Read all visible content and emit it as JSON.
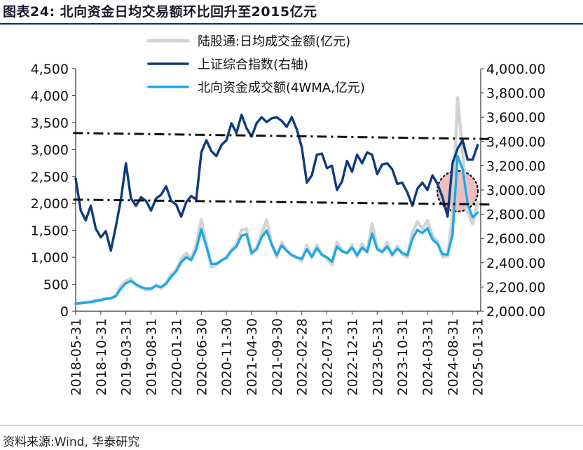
{
  "figure_title": "图表24:  北向资金日均交易额环比回升至2015亿元",
  "source": "资料来源:Wind, 华泰研究",
  "colors": {
    "daily_turnover": "#d3d3d3",
    "index": "#0d3b7e",
    "northbound_4wma": "#1ba8e8",
    "trend_line": "#111111",
    "highlight_fill": "#e8a7a7",
    "title_rule": "#0b2e6b"
  },
  "chart_data": {
    "type": "line",
    "title": "北向资金日均交易额环比回升至2015亿元",
    "x_tick_labels": [
      "2018-05-31",
      "2018-10-31",
      "2019-03-31",
      "2019-08-31",
      "2020-01-31",
      "2020-06-30",
      "2020-11-30",
      "2021-04-30",
      "2021-09-30",
      "2022-02-28",
      "2022-07-31",
      "2022-12-31",
      "2023-05-31",
      "2023-10-31",
      "2024-03-31",
      "2024-08-31",
      "2025-01-31"
    ],
    "x_tick_times": [
      0,
      5,
      10,
      15,
      20,
      25,
      30,
      35,
      40,
      45,
      50,
      55,
      60,
      65,
      70,
      75,
      80
    ],
    "x_range": [
      0,
      80.6
    ],
    "left_axis": {
      "min": 0,
      "max": 4500,
      "ticks": [
        0,
        500,
        1000,
        1500,
        2000,
        2500,
        3000,
        3500,
        4000,
        4500
      ],
      "tick_labels": [
        "0",
        "500",
        "1,000",
        "1,500",
        "2,000",
        "2,500",
        "3,000",
        "3,500",
        "4,000",
        "4,500"
      ]
    },
    "right_axis": {
      "min": 2000,
      "max": 4000,
      "ticks": [
        2000,
        2200,
        2400,
        2600,
        2800,
        3000,
        3200,
        3400,
        3600,
        3800,
        4000
      ],
      "tick_labels": [
        "2,000.00",
        "2,200.00",
        "2,400.00",
        "2,600.00",
        "2,800.00",
        "3,000.00",
        "3,200.00",
        "3,400.00",
        "3,600.00",
        "3,800.00",
        "4,000.00"
      ]
    },
    "series": [
      {
        "name": "陆股通:日均成交金额(亿元)",
        "axis": "left",
        "points": [
          [
            0,
            130
          ],
          [
            1,
            150
          ],
          [
            2,
            160
          ],
          [
            3,
            175
          ],
          [
            4,
            205
          ],
          [
            5,
            210
          ],
          [
            6,
            245
          ],
          [
            7,
            230
          ],
          [
            8,
            300
          ],
          [
            9,
            470
          ],
          [
            10,
            560
          ],
          [
            11,
            610
          ],
          [
            12,
            480
          ],
          [
            13,
            430
          ],
          [
            14,
            390
          ],
          [
            15,
            410
          ],
          [
            16,
            490
          ],
          [
            17,
            420
          ],
          [
            18,
            530
          ],
          [
            19,
            680
          ],
          [
            20,
            770
          ],
          [
            21,
            960
          ],
          [
            22,
            1080
          ],
          [
            23,
            960
          ],
          [
            24,
            1250
          ],
          [
            25,
            1700
          ],
          [
            26,
            1250
          ],
          [
            27,
            820
          ],
          [
            28,
            860
          ],
          [
            29,
            940
          ],
          [
            30,
            1000
          ],
          [
            31,
            1150
          ],
          [
            32,
            1250
          ],
          [
            33,
            1500
          ],
          [
            34,
            1530
          ],
          [
            35,
            1060
          ],
          [
            36,
            1180
          ],
          [
            37,
            1420
          ],
          [
            38,
            1700
          ],
          [
            39,
            1250
          ],
          [
            40,
            1000
          ],
          [
            41,
            1280
          ],
          [
            42,
            1130
          ],
          [
            43,
            1040
          ],
          [
            44,
            990
          ],
          [
            45,
            930
          ],
          [
            46,
            1220
          ],
          [
            47,
            990
          ],
          [
            48,
            1230
          ],
          [
            49,
            1040
          ],
          [
            50,
            980
          ],
          [
            51,
            860
          ],
          [
            52,
            1280
          ],
          [
            53,
            1140
          ],
          [
            54,
            1070
          ],
          [
            55,
            1230
          ],
          [
            56,
            1010
          ],
          [
            57,
            1250
          ],
          [
            58,
            1100
          ],
          [
            59,
            1620
          ],
          [
            60,
            1170
          ],
          [
            61,
            1090
          ],
          [
            62,
            1280
          ],
          [
            63,
            1030
          ],
          [
            64,
            1210
          ],
          [
            65,
            1060
          ],
          [
            66,
            1000
          ],
          [
            67,
            1460
          ],
          [
            68,
            1660
          ],
          [
            69,
            1530
          ],
          [
            70,
            1680
          ],
          [
            71,
            1400
          ],
          [
            72,
            1290
          ],
          [
            73,
            1010
          ],
          [
            74,
            1020
          ],
          [
            75,
            1750
          ],
          [
            76,
            3960
          ],
          [
            77,
            2970
          ],
          [
            78,
            1840
          ],
          [
            79,
            1620
          ],
          [
            80,
            2015
          ]
        ]
      },
      {
        "name": "上证综合指数(右轴)",
        "axis": "right",
        "points": [
          [
            0,
            3095
          ],
          [
            1,
            2830
          ],
          [
            2,
            2750
          ],
          [
            3,
            2870
          ],
          [
            4,
            2680
          ],
          [
            5,
            2610
          ],
          [
            6,
            2660
          ],
          [
            7,
            2500
          ],
          [
            8,
            2700
          ],
          [
            9,
            2920
          ],
          [
            10,
            3220
          ],
          [
            11,
            2930
          ],
          [
            12,
            2870
          ],
          [
            13,
            2940
          ],
          [
            14,
            2910
          ],
          [
            15,
            2830
          ],
          [
            16,
            2930
          ],
          [
            17,
            2960
          ],
          [
            18,
            3030
          ],
          [
            19,
            2910
          ],
          [
            20,
            2880
          ],
          [
            21,
            2780
          ],
          [
            22,
            2900
          ],
          [
            23,
            2950
          ],
          [
            24,
            2920
          ],
          [
            25,
            3310
          ],
          [
            26,
            3410
          ],
          [
            27,
            3320
          ],
          [
            28,
            3280
          ],
          [
            29,
            3370
          ],
          [
            30,
            3410
          ],
          [
            31,
            3550
          ],
          [
            32,
            3470
          ],
          [
            33,
            3620
          ],
          [
            34,
            3510
          ],
          [
            35,
            3440
          ],
          [
            36,
            3550
          ],
          [
            37,
            3600
          ],
          [
            38,
            3560
          ],
          [
            39,
            3590
          ],
          [
            40,
            3600
          ],
          [
            41,
            3570
          ],
          [
            42,
            3520
          ],
          [
            43,
            3600
          ],
          [
            44,
            3500
          ],
          [
            45,
            3350
          ],
          [
            46,
            3060
          ],
          [
            47,
            3120
          ],
          [
            48,
            3290
          ],
          [
            49,
            3300
          ],
          [
            50,
            3180
          ],
          [
            51,
            3200
          ],
          [
            52,
            3000
          ],
          [
            53,
            3070
          ],
          [
            54,
            3240
          ],
          [
            55,
            3150
          ],
          [
            56,
            3290
          ],
          [
            57,
            3220
          ],
          [
            58,
            3310
          ],
          [
            59,
            3290
          ],
          [
            60,
            3130
          ],
          [
            61,
            3210
          ],
          [
            62,
            3220
          ],
          [
            63,
            3170
          ],
          [
            64,
            3050
          ],
          [
            65,
            3060
          ],
          [
            66,
            2980
          ],
          [
            67,
            2870
          ],
          [
            68,
            3010
          ],
          [
            69,
            3060
          ],
          [
            70,
            3000
          ],
          [
            71,
            3120
          ],
          [
            72,
            3050
          ],
          [
            73,
            2940
          ],
          [
            74,
            2780
          ],
          [
            75,
            3220
          ],
          [
            76,
            3340
          ],
          [
            77,
            3410
          ],
          [
            78,
            3250
          ],
          [
            79,
            3250
          ],
          [
            80,
            3370
          ]
        ]
      },
      {
        "name": "北向资金成交额(4WMA,亿元)",
        "axis": "left",
        "points": [
          [
            0,
            140
          ],
          [
            1,
            150
          ],
          [
            2,
            160
          ],
          [
            3,
            170
          ],
          [
            4,
            190
          ],
          [
            5,
            205
          ],
          [
            6,
            230
          ],
          [
            7,
            240
          ],
          [
            8,
            280
          ],
          [
            9,
            420
          ],
          [
            10,
            520
          ],
          [
            11,
            560
          ],
          [
            12,
            500
          ],
          [
            13,
            450
          ],
          [
            14,
            420
          ],
          [
            15,
            420
          ],
          [
            16,
            470
          ],
          [
            17,
            450
          ],
          [
            18,
            510
          ],
          [
            19,
            640
          ],
          [
            20,
            740
          ],
          [
            21,
            910
          ],
          [
            22,
            1000
          ],
          [
            23,
            950
          ],
          [
            24,
            1150
          ],
          [
            25,
            1520
          ],
          [
            26,
            1200
          ],
          [
            27,
            880
          ],
          [
            28,
            880
          ],
          [
            29,
            940
          ],
          [
            30,
            990
          ],
          [
            31,
            1120
          ],
          [
            32,
            1200
          ],
          [
            33,
            1400
          ],
          [
            34,
            1430
          ],
          [
            35,
            1080
          ],
          [
            36,
            1150
          ],
          [
            37,
            1370
          ],
          [
            38,
            1500
          ],
          [
            39,
            1240
          ],
          [
            40,
            1040
          ],
          [
            41,
            1220
          ],
          [
            42,
            1120
          ],
          [
            43,
            1040
          ],
          [
            44,
            1000
          ],
          [
            45,
            970
          ],
          [
            46,
            1150
          ],
          [
            47,
            1010
          ],
          [
            48,
            1170
          ],
          [
            49,
            1050
          ],
          [
            50,
            1000
          ],
          [
            51,
            920
          ],
          [
            52,
            1200
          ],
          [
            53,
            1110
          ],
          [
            54,
            1080
          ],
          [
            55,
            1180
          ],
          [
            56,
            1040
          ],
          [
            57,
            1180
          ],
          [
            58,
            1100
          ],
          [
            59,
            1440
          ],
          [
            60,
            1150
          ],
          [
            61,
            1100
          ],
          [
            62,
            1200
          ],
          [
            63,
            1050
          ],
          [
            64,
            1160
          ],
          [
            65,
            1080
          ],
          [
            66,
            1040
          ],
          [
            67,
            1340
          ],
          [
            68,
            1510
          ],
          [
            69,
            1450
          ],
          [
            70,
            1540
          ],
          [
            71,
            1330
          ],
          [
            72,
            1250
          ],
          [
            73,
            1060
          ],
          [
            74,
            1050
          ],
          [
            75,
            1420
          ],
          [
            76,
            2880
          ],
          [
            77,
            2640
          ],
          [
            78,
            1990
          ],
          [
            79,
            1740
          ],
          [
            80,
            1830
          ]
        ]
      }
    ],
    "trend_lines": [
      {
        "axis": "right",
        "from": [
          -0.5,
          3470
        ],
        "to": [
          82.5,
          3420
        ]
      },
      {
        "axis": "right",
        "from": [
          -0.5,
          2920
        ],
        "to": [
          82.5,
          2880
        ]
      }
    ],
    "highlight_circle": {
      "axis": "right",
      "center": [
        76,
        2990
      ]
    },
    "legend": [
      "陆股通:日均成交金额(亿元)",
      "上证综合指数(右轴)",
      "北向资金成交额(4WMA,亿元)"
    ]
  }
}
